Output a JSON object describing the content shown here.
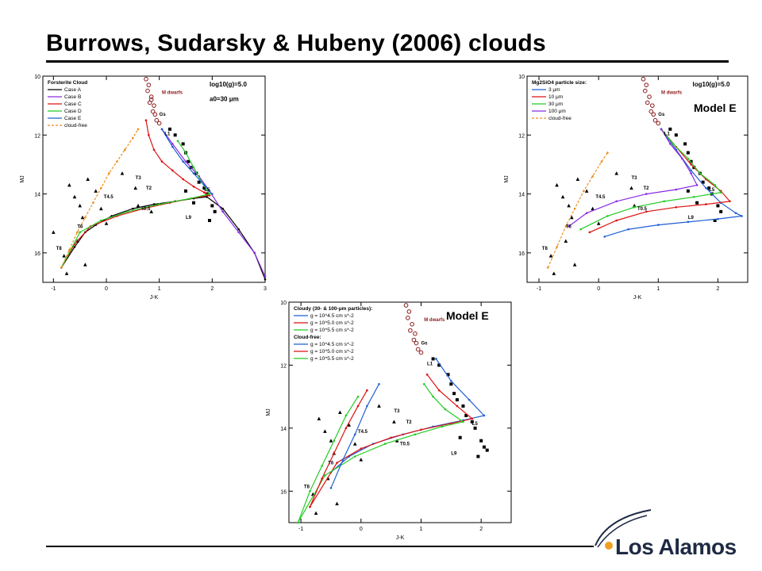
{
  "slide": {
    "title": "Burrows, Sudarsky & Hubeny (2006) clouds",
    "model_label_1": "Model E",
    "model_label_2": "Model E",
    "logo_text": "Los Alamos"
  },
  "chart_data": [
    {
      "type": "line",
      "xlabel": "J-K",
      "ylabel": "MJ",
      "xlim": [
        -1.2,
        3
      ],
      "ylim": [
        10,
        17
      ],
      "y_inverted": true,
      "xticks": [
        -1,
        0,
        1,
        2,
        3
      ],
      "yticks": [
        10,
        12,
        14,
        16
      ],
      "annotations": [
        "log10(g)=5.0",
        "a0=30 μm",
        "M dwarfs",
        "L1",
        "L5",
        "L9",
        "T0.5",
        "T2",
        "T3",
        "T4.5",
        "T6",
        "T8",
        "Gs"
      ],
      "legend": {
        "title": "Forsterite Cloud",
        "entries": [
          "Case A",
          "Case B",
          "Case C",
          "Case D",
          "Case E",
          "cloud-free"
        ],
        "placement": "top-left"
      },
      "series": [
        {
          "name": "Case A",
          "color": "#000000",
          "dashed": false,
          "x": [
            -0.85,
            -0.6,
            -0.4,
            -0.2,
            0.1,
            0.5,
            0.9,
            1.3,
            1.65,
            1.9,
            2.2,
            2.5,
            2.8,
            3.0
          ],
          "y": [
            16.5,
            15.8,
            15.3,
            15.05,
            14.75,
            14.5,
            14.35,
            14.25,
            14.15,
            14.1,
            14.5,
            15.2,
            16.0,
            16.9
          ]
        },
        {
          "name": "Case B",
          "color": "#8a2be2",
          "dashed": false,
          "x": [
            1.05,
            1.25,
            1.5,
            1.75,
            1.95,
            2.2,
            2.5,
            2.8,
            3.0
          ],
          "y": [
            11.8,
            12.3,
            12.9,
            13.4,
            13.9,
            14.6,
            15.3,
            16.0,
            16.8
          ]
        },
        {
          "name": "Case C",
          "color": "#dd1111",
          "dashed": false,
          "x": [
            0.75,
            0.8,
            0.9,
            1.05,
            1.25,
            1.45,
            1.65,
            1.85,
            1.95,
            1.6,
            1.2,
            0.7,
            0.2,
            -0.3,
            -0.6,
            -0.85
          ],
          "y": [
            11.5,
            12.0,
            12.5,
            12.9,
            13.2,
            13.5,
            13.75,
            13.95,
            14.05,
            14.15,
            14.3,
            14.5,
            14.75,
            15.1,
            15.7,
            16.5
          ]
        },
        {
          "name": "Case D",
          "color": "#22cc22",
          "dashed": false,
          "x": [
            1.35,
            1.5,
            1.65,
            1.8,
            1.95,
            1.6,
            1.0,
            0.4,
            -0.1,
            -0.5,
            -0.85
          ],
          "y": [
            12.2,
            12.6,
            13.1,
            13.6,
            14.0,
            14.15,
            14.35,
            14.6,
            14.9,
            15.3,
            16.5
          ]
        },
        {
          "name": "Case E",
          "color": "#1f5fd6",
          "dashed": false,
          "x": [
            1.05,
            1.25,
            1.45,
            1.65,
            1.85,
            2.0
          ],
          "y": [
            11.8,
            12.4,
            12.9,
            13.3,
            13.7,
            14.0
          ]
        },
        {
          "name": "cloud-free",
          "color": "#f08c1a",
          "dashed": true,
          "x": [
            -0.85,
            -0.7,
            -0.55,
            -0.4,
            -0.25,
            -0.1,
            0.05,
            0.2,
            0.35,
            0.5,
            0.6
          ],
          "y": [
            16.5,
            15.9,
            15.3,
            14.8,
            14.3,
            13.8,
            13.3,
            12.9,
            12.5,
            12.1,
            11.8
          ]
        }
      ],
      "dwarf_points": {
        "m_dwarfs": {
          "x": [
            0.75,
            0.8,
            0.78,
            0.85,
            0.82,
            0.9,
            0.88,
            0.92,
            0.95,
            0.85,
            1.0
          ],
          "y": [
            10.1,
            10.3,
            10.5,
            10.7,
            10.9,
            11.0,
            11.2,
            11.3,
            11.5,
            10.8,
            11.6
          ]
        },
        "l_dwarfs": {
          "x": [
            1.2,
            1.3,
            1.45,
            1.5,
            1.55,
            1.6,
            1.7,
            1.75,
            1.85,
            1.9,
            2.0,
            2.05,
            1.5,
            1.65,
            1.95
          ],
          "y": [
            11.8,
            12.0,
            12.3,
            12.6,
            12.9,
            13.1,
            13.3,
            13.6,
            13.8,
            14.0,
            14.4,
            14.6,
            13.9,
            14.3,
            14.9
          ]
        },
        "t_dwarfs": {
          "x": [
            -1.0,
            -0.8,
            -0.7,
            -0.6,
            -0.5,
            -0.45,
            -0.35,
            -0.2,
            -0.1,
            0.0,
            0.3,
            0.55,
            0.6,
            0.85,
            -0.55,
            -0.4,
            -0.75
          ],
          "y": [
            15.3,
            16.1,
            13.7,
            14.1,
            14.4,
            14.8,
            13.5,
            13.9,
            14.5,
            15.0,
            13.3,
            13.8,
            14.4,
            14.6,
            15.6,
            16.4,
            16.7
          ]
        }
      }
    },
    {
      "type": "line",
      "xlabel": "J-K",
      "ylabel": "MJ",
      "xlim": [
        -1.2,
        2.5
      ],
      "ylim": [
        10,
        17
      ],
      "y_inverted": true,
      "xticks": [
        -1,
        0,
        1,
        2
      ],
      "yticks": [
        10,
        12,
        14,
        16
      ],
      "annotations": [
        "log10(g)=5.0",
        "M dwarfs",
        "L1",
        "L5",
        "L9",
        "T0.5",
        "T2",
        "T3",
        "T4.5",
        "T6",
        "T8",
        "Gs"
      ],
      "legend": {
        "title": "Mg2SiO4 particle size:",
        "entries": [
          "3 μm",
          "10 μm",
          "30 μm",
          "100 μm",
          "cloud-free"
        ],
        "placement": "top-left"
      },
      "series": [
        {
          "name": "3 μm",
          "color": "#1f5fd6",
          "dashed": false,
          "x": [
            1.05,
            1.3,
            1.55,
            1.8,
            2.05,
            2.3,
            2.4,
            2.0,
            1.5,
            1.0,
            0.5,
            0.1
          ],
          "y": [
            11.8,
            12.5,
            13.2,
            13.8,
            14.3,
            14.65,
            14.75,
            14.85,
            14.95,
            15.05,
            15.2,
            15.45
          ]
        },
        {
          "name": "10 μm",
          "color": "#dd1111",
          "dashed": false,
          "x": [
            1.05,
            1.3,
            1.55,
            1.8,
            2.05,
            2.2,
            1.8,
            1.3,
            0.8,
            0.3,
            -0.15
          ],
          "y": [
            11.8,
            12.4,
            13.0,
            13.5,
            13.9,
            14.25,
            14.35,
            14.45,
            14.6,
            14.9,
            15.3
          ]
        },
        {
          "name": "30 μm",
          "color": "#22cc22",
          "dashed": false,
          "x": [
            1.05,
            1.25,
            1.5,
            1.7,
            1.95,
            2.05,
            1.6,
            1.1,
            0.6,
            0.15,
            -0.3
          ],
          "y": [
            11.8,
            12.3,
            12.8,
            13.3,
            13.7,
            13.95,
            14.1,
            14.25,
            14.45,
            14.75,
            15.2
          ]
        },
        {
          "name": "100 μm",
          "color": "#8a2be2",
          "dashed": false,
          "x": [
            1.05,
            1.2,
            1.4,
            1.55,
            1.65,
            1.3,
            0.8,
            0.3,
            -0.2,
            -0.5
          ],
          "y": [
            11.8,
            12.3,
            12.8,
            13.3,
            13.7,
            13.85,
            14.0,
            14.25,
            14.65,
            15.1
          ]
        },
        {
          "name": "cloud-free",
          "color": "#f08c1a",
          "dashed": true,
          "x": [
            -0.85,
            -0.7,
            -0.55,
            -0.4,
            -0.25,
            -0.1,
            0.05,
            0.15
          ],
          "y": [
            16.5,
            15.8,
            15.1,
            14.5,
            13.9,
            13.4,
            12.9,
            12.6
          ]
        }
      ],
      "dwarf_points": {
        "m_dwarfs": {
          "x": [
            0.75,
            0.8,
            0.78,
            0.85,
            0.82,
            0.9,
            0.88,
            0.92,
            0.95,
            1.0
          ],
          "y": [
            10.1,
            10.3,
            10.5,
            10.7,
            10.9,
            11.0,
            11.2,
            11.3,
            11.5,
            11.6
          ]
        },
        "l_dwarfs": {
          "x": [
            1.2,
            1.3,
            1.45,
            1.5,
            1.55,
            1.6,
            1.7,
            1.75,
            1.85,
            1.9,
            2.0,
            2.05,
            1.5,
            1.65,
            1.95
          ],
          "y": [
            11.8,
            12.0,
            12.3,
            12.6,
            12.9,
            13.1,
            13.3,
            13.6,
            13.8,
            14.0,
            14.4,
            14.6,
            13.9,
            14.3,
            14.9
          ]
        },
        "t_dwarfs": {
          "x": [
            -0.8,
            -0.7,
            -0.6,
            -0.5,
            -0.45,
            -0.35,
            -0.2,
            -0.1,
            0.0,
            0.3,
            0.55,
            0.6,
            -0.55,
            -0.4,
            -0.75
          ],
          "y": [
            16.1,
            13.7,
            14.1,
            14.4,
            14.8,
            13.5,
            13.9,
            14.5,
            15.0,
            13.3,
            13.8,
            14.4,
            15.6,
            16.4,
            16.7
          ]
        }
      }
    },
    {
      "type": "line",
      "xlabel": "J-K",
      "ylabel": "MJ",
      "xlim": [
        -1.2,
        2.5
      ],
      "ylim": [
        10,
        17
      ],
      "y_inverted": true,
      "xticks": [
        -1,
        0,
        1,
        2
      ],
      "yticks": [
        10,
        12,
        14,
        16
      ],
      "annotations": [
        "M dwarfs",
        "L1",
        "L5",
        "L9",
        "T0.5",
        "T2",
        "T3",
        "T4.5",
        "T6",
        "T8",
        "Gs"
      ],
      "legend": {
        "title": "Cloudy (30- & 100-μm particles):",
        "subtitle": "Cloud-free:",
        "entries": [
          "g = 10^4.5 cm s^-2",
          "g = 10^5.0 cm s^-2",
          "g = 10^5.5 cm s^-2",
          "g = 10^4.5 cm s^-2",
          "g = 10^5.0 cm s^-2",
          "g = 10^5.5 cm s^-2"
        ],
        "placement": "top-left"
      },
      "series": [
        {
          "name": "g = 10^4.5 cm s^-2",
          "color": "#1f5fd6",
          "dashed": false,
          "x": [
            1.25,
            1.5,
            1.8,
            2.05,
            1.7,
            1.2,
            0.7,
            0.2,
            -0.2,
            -0.5
          ],
          "y": [
            11.8,
            12.5,
            13.1,
            13.6,
            13.75,
            13.95,
            14.2,
            14.5,
            14.9,
            15.4
          ]
        },
        {
          "name": "g = 10^5.0 cm s^-2",
          "color": "#dd1111",
          "dashed": false,
          "x": [
            1.1,
            1.3,
            1.6,
            1.85,
            1.5,
            1.0,
            0.5,
            0.0,
            -0.4,
            -0.85
          ],
          "y": [
            12.3,
            12.8,
            13.3,
            13.7,
            13.85,
            14.05,
            14.3,
            14.65,
            15.1,
            16.5
          ]
        },
        {
          "name": "g = 10^5.5 cm s^-2",
          "color": "#22cc22",
          "dashed": false,
          "x": [
            1.05,
            1.2,
            1.4,
            1.7,
            1.35,
            0.9,
            0.4,
            -0.1,
            -0.6,
            -1.05
          ],
          "y": [
            12.6,
            13.0,
            13.4,
            13.8,
            13.95,
            14.2,
            14.5,
            14.9,
            15.5,
            17.0
          ]
        },
        {
          "name": "g = 10^4.5 cm s^-2 (cloud-free)",
          "color": "#1f5fd6",
          "dashed": false,
          "x": [
            -0.5,
            -0.3,
            -0.1,
            0.1,
            0.3
          ],
          "y": [
            15.9,
            15.0,
            14.2,
            13.3,
            12.6
          ]
        },
        {
          "name": "g = 10^5.0 cm s^-2 (cloud-free)",
          "color": "#dd1111",
          "dashed": false,
          "x": [
            -0.85,
            -0.65,
            -0.45,
            -0.25,
            -0.05,
            0.1
          ],
          "y": [
            16.5,
            15.6,
            14.8,
            14.0,
            13.3,
            12.8
          ]
        },
        {
          "name": "g = 10^5.5 cm s^-2 (cloud-free)",
          "color": "#22cc22",
          "dashed": false,
          "x": [
            -1.05,
            -0.85,
            -0.65,
            -0.45,
            -0.25,
            -0.05
          ],
          "y": [
            17.0,
            16.0,
            15.2,
            14.4,
            13.6,
            13.0
          ]
        }
      ],
      "dwarf_points": {
        "m_dwarfs": {
          "x": [
            0.75,
            0.8,
            0.78,
            0.85,
            0.82,
            0.9,
            0.88,
            0.92,
            0.95,
            1.0
          ],
          "y": [
            10.1,
            10.3,
            10.5,
            10.7,
            10.9,
            11.0,
            11.2,
            11.3,
            11.5,
            11.6
          ]
        },
        "l_dwarfs": {
          "x": [
            1.2,
            1.3,
            1.45,
            1.5,
            1.55,
            1.6,
            1.7,
            1.75,
            1.85,
            1.9,
            2.0,
            2.05,
            2.1,
            1.65,
            1.95
          ],
          "y": [
            11.8,
            12.0,
            12.3,
            12.6,
            12.9,
            13.1,
            13.3,
            13.6,
            13.8,
            14.0,
            14.4,
            14.6,
            14.7,
            14.3,
            14.9
          ]
        },
        "t_dwarfs": {
          "x": [
            -0.8,
            -0.7,
            -0.6,
            -0.5,
            -0.45,
            -0.35,
            -0.2,
            -0.1,
            0.0,
            0.3,
            0.55,
            0.6,
            -0.55,
            -0.4,
            -0.75
          ],
          "y": [
            16.1,
            13.7,
            14.1,
            14.4,
            14.8,
            13.5,
            13.9,
            14.5,
            15.0,
            13.3,
            13.8,
            14.4,
            15.6,
            16.4,
            16.7
          ]
        }
      }
    }
  ]
}
